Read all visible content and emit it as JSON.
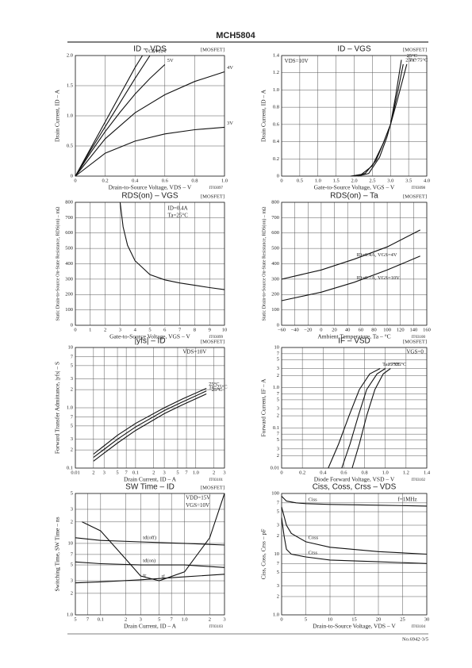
{
  "page": {
    "header": "MCH5804",
    "footer": "No.6942-3/5"
  },
  "chart_data": [
    {
      "type": "line",
      "title": "ID – VDS",
      "tag": "[MOSFET]",
      "code": "IT03097",
      "xlabel": "Drain-to-Source Voltage, VDS – V",
      "ylabel": "Drain Current, ID – A",
      "notes": [],
      "xlim": [
        0,
        1
      ],
      "xticks": [
        0,
        0.2,
        0.4,
        0.6,
        0.8,
        {
          "value": 1,
          "label": "1.0"
        }
      ],
      "ylim": [
        0,
        2
      ],
      "yticks": [
        0,
        0.5,
        {
          "value": 1,
          "label": "1.0"
        },
        1.5,
        {
          "value": 2,
          "label": "2.0"
        }
      ],
      "series": [
        {
          "name": "VGS=10V",
          "x": [
            0,
            0.1,
            0.2,
            0.3,
            0.4,
            0.45
          ],
          "values": [
            0,
            0.45,
            0.9,
            1.35,
            1.8,
            2.0
          ]
        },
        {
          "name": "6V",
          "x": [
            0,
            0.1,
            0.2,
            0.3,
            0.4,
            0.5
          ],
          "values": [
            0,
            0.42,
            0.82,
            1.22,
            1.62,
            2.0
          ]
        },
        {
          "name": "5V",
          "x": [
            0,
            0.1,
            0.2,
            0.3,
            0.4,
            0.5,
            0.6
          ],
          "values": [
            0,
            0.38,
            0.74,
            1.06,
            1.36,
            1.62,
            1.85
          ]
        },
        {
          "name": "4V",
          "x": [
            0,
            0.2,
            0.4,
            0.6,
            0.8,
            1.0
          ],
          "values": [
            0,
            0.62,
            1.05,
            1.35,
            1.57,
            1.73
          ]
        },
        {
          "name": "3V",
          "x": [
            0,
            0.2,
            0.4,
            0.6,
            0.8,
            1.0
          ],
          "values": [
            0,
            0.38,
            0.58,
            0.7,
            0.77,
            0.81
          ]
        }
      ]
    },
    {
      "type": "line",
      "title": "ID – VGS",
      "tag": "[MOSFET]",
      "code": "IT03098",
      "xlabel": "Gate-to-Source Voltage, VGS – V",
      "ylabel": "Drain Current, ID – A",
      "notes": [
        "VDS=10V"
      ],
      "xlim": [
        0,
        4
      ],
      "xticks": [
        0,
        0.5,
        {
          "value": 1,
          "label": "1.0"
        },
        1.5,
        {
          "value": 2,
          "label": "2.0"
        },
        2.5,
        {
          "value": 3,
          "label": "3.0"
        },
        3.5,
        {
          "value": 4,
          "label": "4.0"
        }
      ],
      "ylim": [
        0,
        1.4
      ],
      "yticks": [
        0,
        0.2,
        0.4,
        0.6,
        0.8,
        {
          "value": 1,
          "label": "1.0"
        },
        1.2,
        1.4
      ],
      "series": [
        {
          "name": "Ta=75°C",
          "x": [
            1.9,
            2.2,
            2.5,
            2.8,
            3.0,
            3.2,
            3.45
          ],
          "values": [
            0,
            0.02,
            0.12,
            0.38,
            0.6,
            0.9,
            1.3
          ]
        },
        {
          "name": "25°C",
          "x": [
            2.0,
            2.3,
            2.6,
            2.8,
            3.0,
            3.2,
            3.35
          ],
          "values": [
            0,
            0.03,
            0.18,
            0.38,
            0.6,
            0.98,
            1.3
          ]
        },
        {
          "name": "−25°C",
          "x": [
            2.1,
            2.4,
            2.7,
            2.9,
            3.0,
            3.15,
            3.3
          ],
          "values": [
            0,
            0.03,
            0.22,
            0.45,
            0.6,
            0.95,
            1.35
          ]
        }
      ]
    },
    {
      "type": "line",
      "title": "RDS(on) – VGS",
      "tag": "[MOSFET]",
      "code": "IT03099",
      "xlabel": "Gate-to-Source Voltage, VGS – V",
      "ylabel": "Static Drain-to-Source On-State Resistance, RDS(on) – mΩ",
      "notes": [
        "ID=0.4A",
        "Ta=25°C"
      ],
      "xlim": [
        0,
        10
      ],
      "xticks": [
        0,
        1,
        2,
        3,
        4,
        5,
        6,
        7,
        8,
        9,
        10
      ],
      "ylim": [
        0,
        800
      ],
      "yticks": [
        0,
        100,
        200,
        300,
        400,
        500,
        600,
        700,
        800
      ],
      "series": [
        {
          "x": [
            3,
            3.2,
            3.5,
            4,
            5,
            6,
            7,
            8,
            9,
            10
          ],
          "values": [
            800,
            640,
            520,
            420,
            330,
            295,
            275,
            260,
            245,
            232
          ]
        }
      ]
    },
    {
      "type": "line",
      "title": "RDS(on) – Ta",
      "tag": "[MOSFET]",
      "code": "IT03100",
      "xlabel": "Ambient Temperature, Ta – °C",
      "ylabel": "Static Drain-to-Source On-State Resistance, RDS(on) – mΩ",
      "notes": [],
      "xlim": [
        -60,
        160
      ],
      "xticks": [
        {
          "value": -60,
          "label": "−60"
        },
        {
          "value": -40,
          "label": "−40"
        },
        {
          "value": -20,
          "label": "−20"
        },
        0,
        20,
        40,
        60,
        80,
        100,
        120,
        140,
        160
      ],
      "ylim": [
        0,
        800
      ],
      "yticks": [
        0,
        100,
        200,
        300,
        400,
        500,
        600,
        700,
        800
      ],
      "series": [
        {
          "name": "ID=0.4A, VGS=4V",
          "x": [
            -60,
            0,
            50,
            100,
            150
          ],
          "values": [
            300,
            360,
            430,
            510,
            620
          ]
        },
        {
          "name": "ID=0.7A, VGS=10V",
          "x": [
            -60,
            0,
            50,
            100,
            150
          ],
          "values": [
            160,
            215,
            280,
            360,
            450
          ]
        }
      ]
    },
    {
      "type": "line",
      "title": "|yfs| – ID",
      "tag": "[MOSFET]",
      "code": "IT03101",
      "xlabel": "Drain Current, ID – A",
      "ylabel": "Forward Transfer Admittance, |yfs| – S",
      "notes": [
        "VDS=10V"
      ],
      "xlog": true,
      "ylog": true,
      "xlim": [
        0.01,
        3
      ],
      "xticks": [
        0.01,
        {
          "value": 0.02,
          "label": "2"
        },
        {
          "value": 0.03,
          "label": "3"
        },
        {
          "value": 0.05,
          "label": "5"
        },
        {
          "value": 0.07,
          "label": "7"
        },
        0.1,
        {
          "value": 0.2,
          "label": "2"
        },
        {
          "value": 0.3,
          "label": "3"
        },
        {
          "value": 0.5,
          "label": "5"
        },
        {
          "value": 0.7,
          "label": "7"
        },
        {
          "value": 1,
          "label": "1.0"
        },
        {
          "value": 2,
          "label": "2"
        },
        {
          "value": 3,
          "label": "3"
        }
      ],
      "ylim": [
        0.1,
        10
      ],
      "yticks": [
        0.1,
        {
          "value": 0.2,
          "label": "2"
        },
        {
          "value": 0.3,
          "label": "3"
        },
        {
          "value": 0.5,
          "label": "5"
        },
        {
          "value": 0.7,
          "label": "7"
        },
        {
          "value": 1,
          "label": "1.0"
        },
        {
          "value": 2,
          "label": "2"
        },
        {
          "value": 3,
          "label": "3"
        },
        {
          "value": 5,
          "label": "5"
        },
        {
          "value": 7,
          "label": "7"
        },
        10
      ],
      "series": [
        {
          "name": "75°C",
          "x": [
            0.02,
            0.05,
            0.1,
            0.3,
            0.6,
            1.5
          ],
          "values": [
            0.17,
            0.35,
            0.55,
            1.0,
            1.4,
            2.1
          ]
        },
        {
          "name": "Ta=25°C",
          "x": [
            0.02,
            0.05,
            0.1,
            0.3,
            0.6,
            1.5
          ],
          "values": [
            0.15,
            0.3,
            0.48,
            0.9,
            1.25,
            1.9
          ]
        },
        {
          "name": "−25°C",
          "x": [
            0.02,
            0.05,
            0.1,
            0.3,
            0.6,
            1.5
          ],
          "values": [
            0.13,
            0.26,
            0.42,
            0.8,
            1.12,
            1.7
          ]
        }
      ]
    },
    {
      "type": "line",
      "title": "IF – VSD",
      "tag": "[MOSFET]",
      "code": "IT03102",
      "xlabel": "Diode Forward Voltage, VSD – V",
      "ylabel": "Forward Current, IF – A",
      "notes": [
        "VGS=0"
      ],
      "ylog": true,
      "xlim": [
        0,
        1.4
      ],
      "xticks": [
        0,
        0.2,
        0.4,
        0.6,
        0.8,
        {
          "value": 1,
          "label": "1.0"
        },
        1.2,
        1.4
      ],
      "ylim": [
        0.01,
        10
      ],
      "yticks": [
        0.01,
        {
          "value": 0.02,
          "label": "2"
        },
        {
          "value": 0.03,
          "label": "3"
        },
        {
          "value": 0.05,
          "label": "5"
        },
        {
          "value": 0.07,
          "label": "7"
        },
        0.1,
        {
          "value": 0.2,
          "label": "2"
        },
        {
          "value": 0.3,
          "label": "3"
        },
        {
          "value": 0.5,
          "label": "5"
        },
        {
          "value": 0.7,
          "label": "7"
        },
        {
          "value": 1,
          "label": "1.0"
        },
        {
          "value": 2,
          "label": "2"
        },
        {
          "value": 3,
          "label": "3"
        },
        {
          "value": 5,
          "label": "5"
        },
        {
          "value": 7,
          "label": "7"
        },
        10
      ],
      "series": [
        {
          "name": "Ta=75°C",
          "x": [
            0.45,
            0.55,
            0.65,
            0.75,
            0.85,
            0.95
          ],
          "values": [
            0.01,
            0.04,
            0.2,
            0.9,
            2.2,
            3
          ]
        },
        {
          "name": "25°C",
          "x": [
            0.58,
            0.66,
            0.74,
            0.82,
            0.92,
            1.0
          ],
          "values": [
            0.01,
            0.04,
            0.2,
            0.9,
            2.2,
            3
          ]
        },
        {
          "name": "−25°C",
          "x": [
            0.68,
            0.75,
            0.82,
            0.9,
            0.98,
            1.05
          ],
          "values": [
            0.01,
            0.04,
            0.2,
            0.9,
            2.2,
            3
          ]
        }
      ]
    },
    {
      "type": "line",
      "title": "SW Time – ID",
      "tag": "[MOSFET]",
      "code": "IT03103",
      "xlabel": "Drain Current, ID – A",
      "ylabel": "Switching Time, SW Time – ns",
      "notes": [
        "VDD=15V",
        "VGS=10V"
      ],
      "xlog": true,
      "ylog": true,
      "xlim": [
        0.05,
        3
      ],
      "xticks": [
        {
          "value": 0.05,
          "label": "5"
        },
        {
          "value": 0.07,
          "label": "7"
        },
        0.1,
        {
          "value": 0.2,
          "label": "2"
        },
        {
          "value": 0.3,
          "label": "3"
        },
        {
          "value": 0.5,
          "label": "5"
        },
        {
          "value": 0.7,
          "label": "7"
        },
        {
          "value": 1,
          "label": "1.0"
        },
        {
          "value": 2,
          "label": "2"
        },
        {
          "value": 3,
          "label": "3"
        }
      ],
      "ylim": [
        1,
        50
      ],
      "yticks": [
        {
          "value": 1,
          "label": "1.0"
        },
        2,
        3,
        5,
        7,
        10,
        {
          "value": 20,
          "label": "2"
        },
        {
          "value": 30,
          "label": "3"
        },
        {
          "value": 50,
          "label": "5"
        }
      ],
      "series": [
        {
          "name": "td(off)",
          "x": [
            0.05,
            0.1,
            0.3,
            1,
            3
          ],
          "values": [
            12,
            11,
            10.5,
            10,
            9.5
          ]
        },
        {
          "name": "tf",
          "x": [
            0.06,
            0.1,
            0.2,
            0.3,
            0.5,
            1,
            2,
            3
          ],
          "values": [
            20,
            15,
            6,
            3.5,
            3,
            4,
            12,
            50
          ]
        },
        {
          "name": "td(on)",
          "x": [
            0.05,
            0.1,
            0.3,
            1,
            3
          ],
          "values": [
            5.5,
            5.2,
            5.0,
            5.0,
            4.6
          ]
        },
        {
          "name": "tr",
          "x": [
            0.05,
            0.1,
            0.3,
            1,
            3
          ],
          "values": [
            2.8,
            2.9,
            3.1,
            3.4,
            3.7
          ]
        }
      ]
    },
    {
      "type": "line",
      "title": "Ciss, Coss, Crss – VDS",
      "tag": "",
      "code": "IT03104",
      "xlabel": "Drain-to-Source Voltage, VDS – V",
      "ylabel": "Ciss, Coss, Crss – pF",
      "notes": [
        "f=1MHz"
      ],
      "ylog": true,
      "xlim": [
        0,
        30
      ],
      "xticks": [
        0,
        5,
        10,
        15,
        20,
        25,
        30
      ],
      "ylim": [
        1,
        100
      ],
      "yticks": [
        {
          "value": 1,
          "label": "1.0"
        },
        2,
        3,
        5,
        7,
        10,
        {
          "value": 20,
          "label": "2"
        },
        {
          "value": 30,
          "label": "3"
        },
        {
          "value": 50,
          "label": "5"
        },
        {
          "value": 70,
          "label": "7"
        },
        100
      ],
      "series": [
        {
          "name": "Ciss",
          "x": [
            0,
            1,
            3,
            5,
            10,
            20,
            30
          ],
          "values": [
            90,
            75,
            70,
            68,
            66,
            64,
            62
          ]
        },
        {
          "name": "Coss",
          "x": [
            0,
            1,
            2,
            5,
            10,
            20,
            30
          ],
          "values": [
            60,
            30,
            22,
            16,
            13,
            11,
            10
          ]
        },
        {
          "name": "Crss",
          "x": [
            0,
            0.5,
            1,
            2,
            5,
            10,
            20,
            30
          ],
          "values": [
            40,
            20,
            12,
            10,
            9,
            8,
            7.5,
            7
          ]
        }
      ]
    }
  ]
}
